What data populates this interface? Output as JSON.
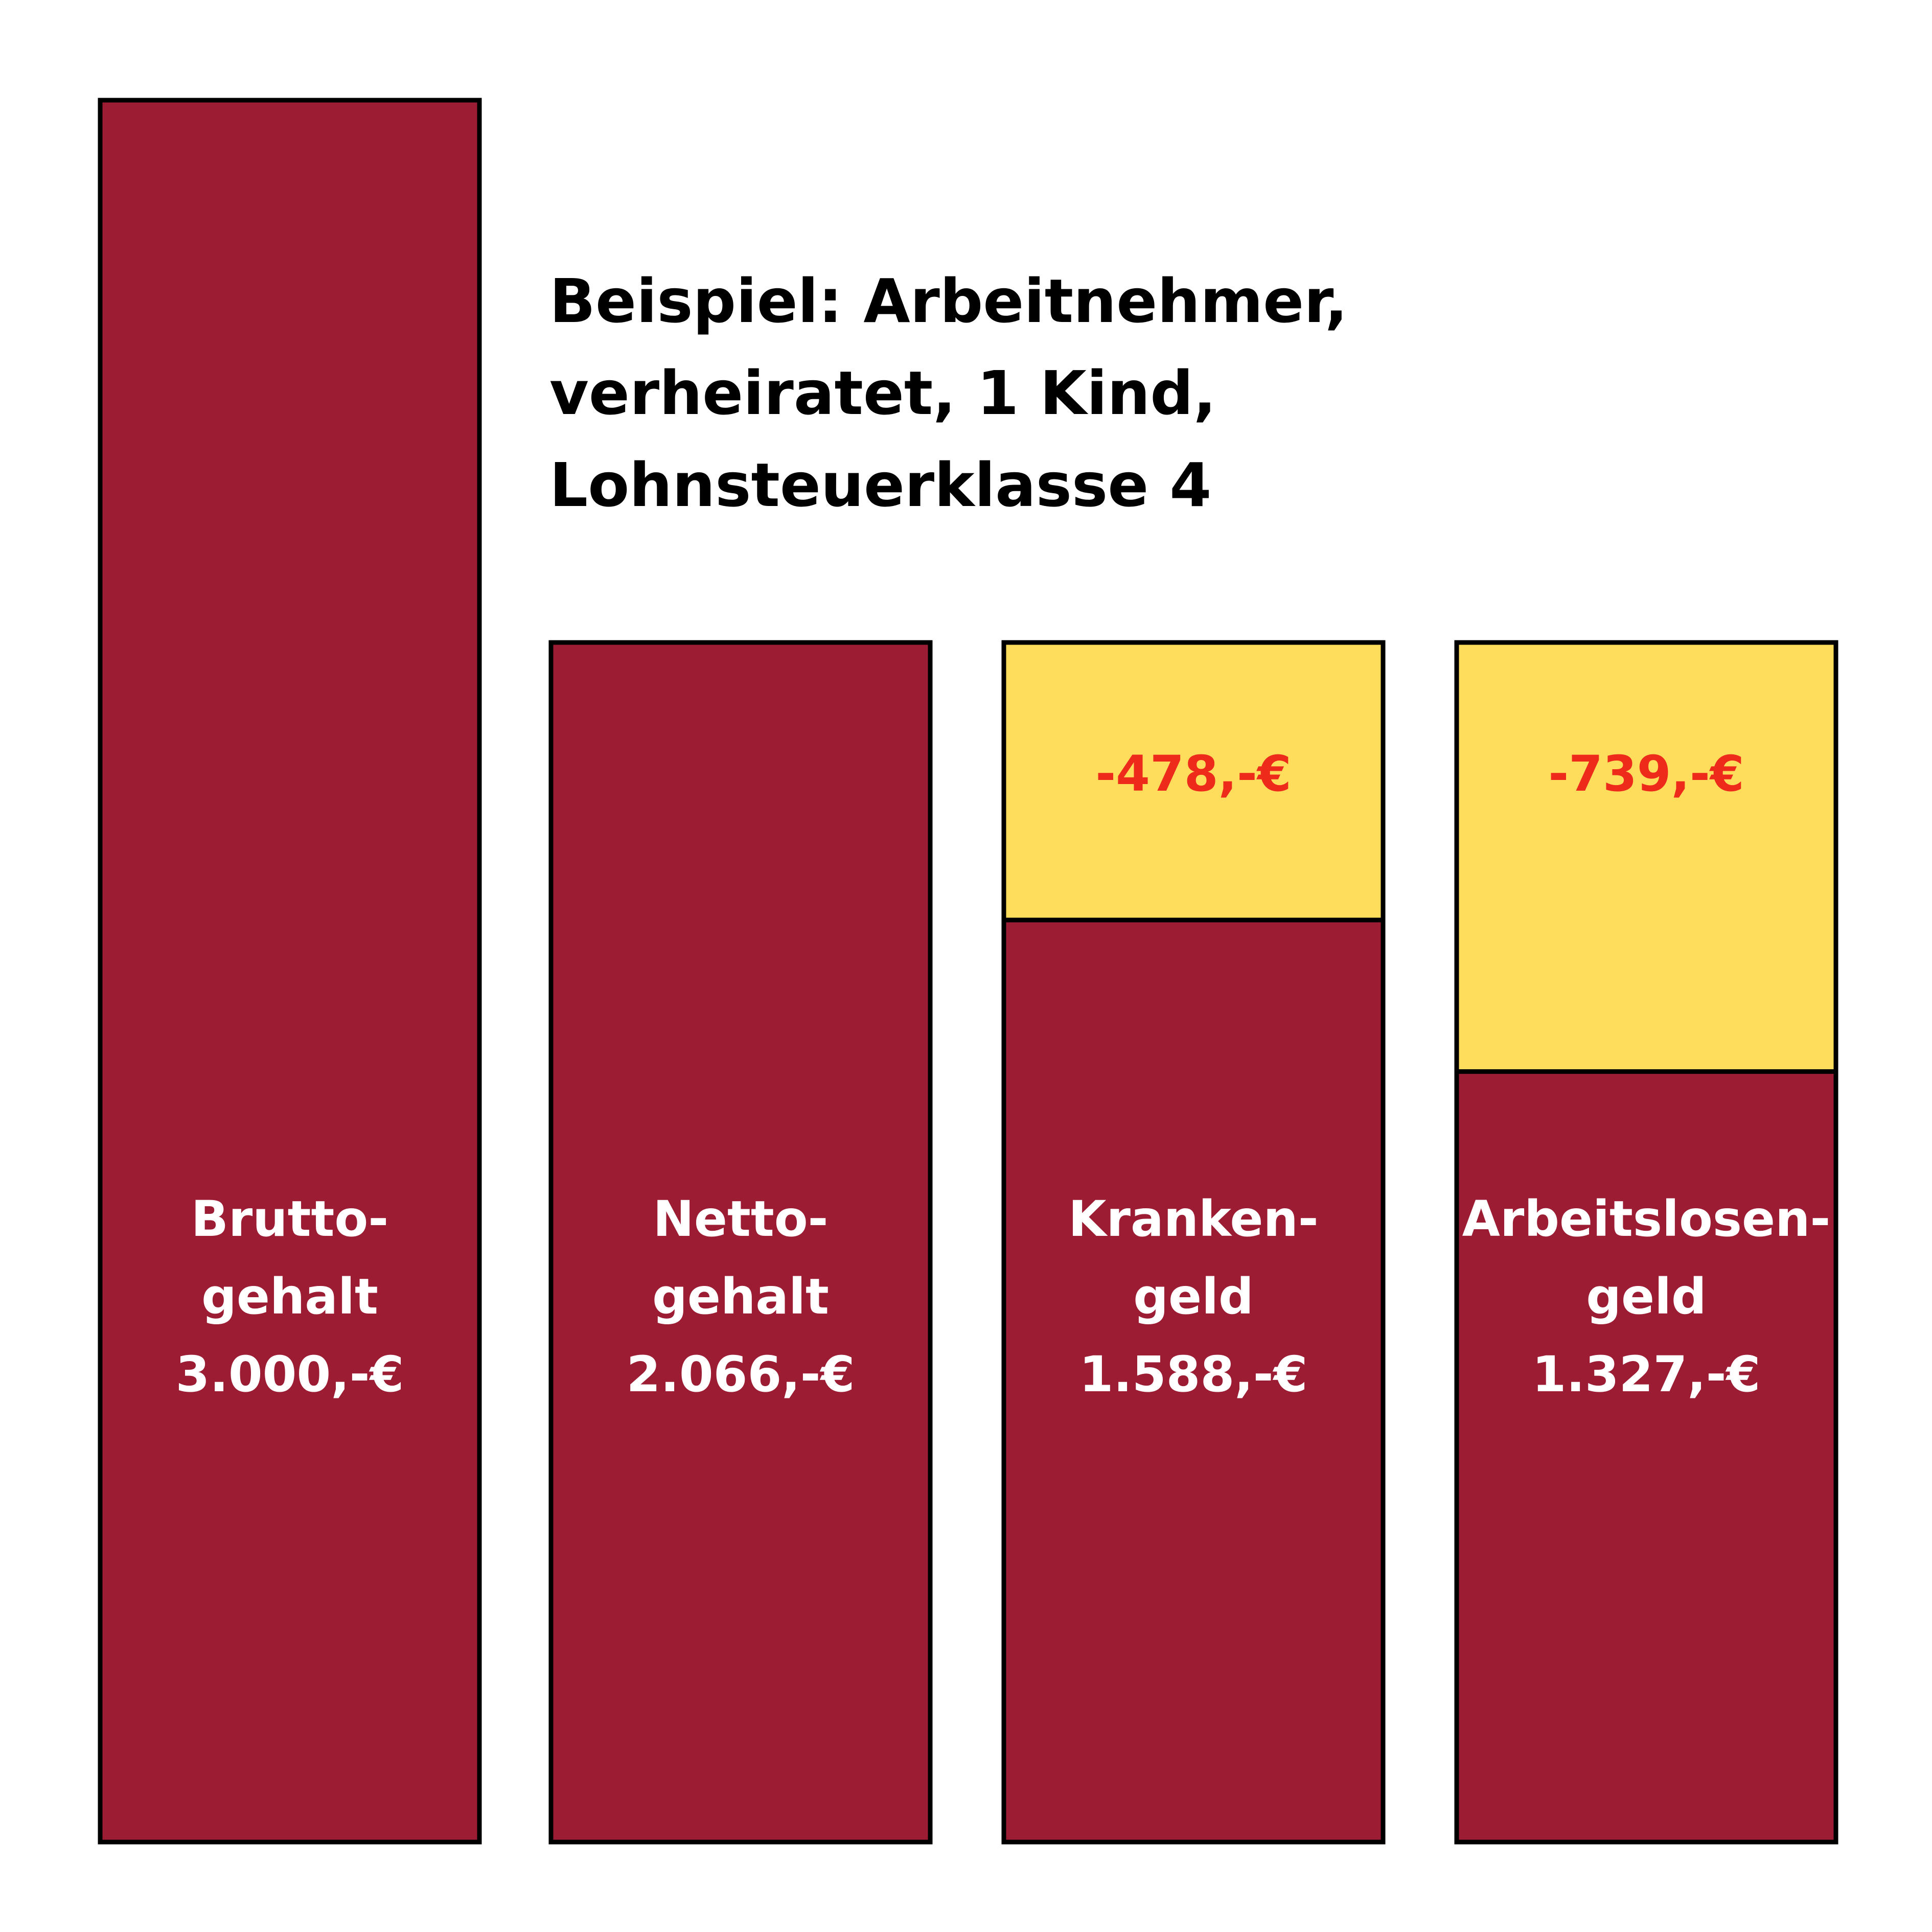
{
  "chart_data": {
    "type": "bar",
    "stacked": true,
    "title_lines": [
      "Beispiel: Arbeitnehmer,",
      "verheiratet, 1 Kind,",
      "Lohnsteuerklasse 4"
    ],
    "categories": [
      {
        "label_lines": [
          "Brutto-",
          "gehalt",
          "3.000,-€"
        ],
        "value": 3000,
        "reduction": 0,
        "reduction_label": ""
      },
      {
        "label_lines": [
          "Netto-",
          "gehalt",
          "2.066,-€"
        ],
        "value": 2066,
        "reduction": 0,
        "reduction_label": ""
      },
      {
        "label_lines": [
          "Kranken-",
          "geld",
          "1.588,-€"
        ],
        "value": 1588,
        "reduction": 478,
        "reduction_label": "-478,-€"
      },
      {
        "label_lines": [
          "Arbeitslosen-",
          "geld",
          "1.327,-€"
        ],
        "value": 1327,
        "reduction": 739,
        "reduction_label": "-739,-€"
      }
    ],
    "ylim": [
      0,
      3000
    ],
    "grid": false,
    "legend": "none",
    "colors": {
      "value_fill": "#9c1c33",
      "reduction_fill": "#ffdd5c",
      "reduction_text": "#ee2a1b",
      "outline": "#000000",
      "label_text": "#ffffff",
      "title_text": "#000000"
    }
  }
}
